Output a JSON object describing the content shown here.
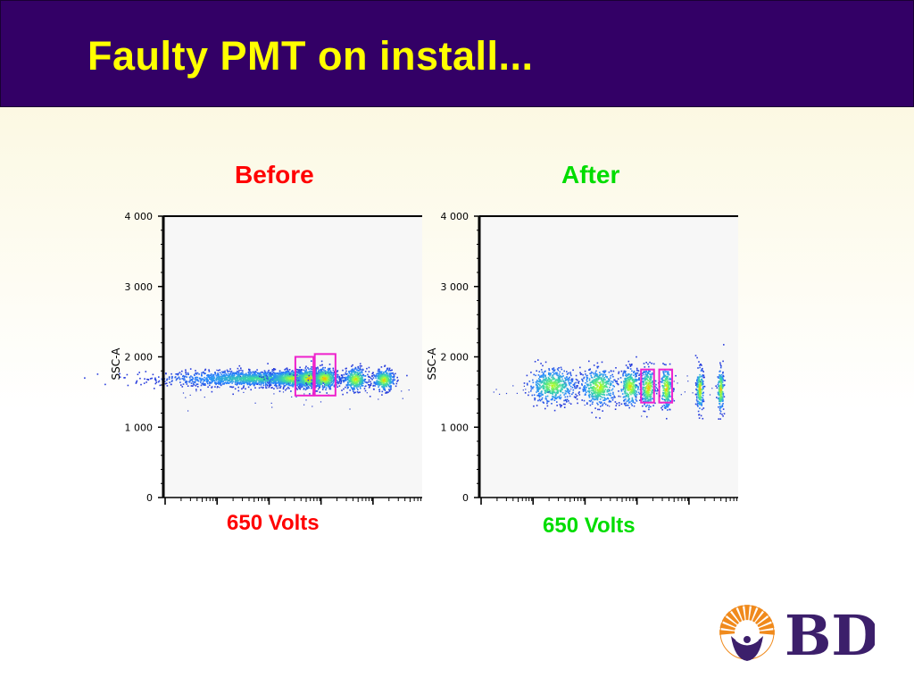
{
  "slide": {
    "title": "Faulty PMT on install...",
    "brand": "BD",
    "colors": {
      "title_bar": "#330066",
      "title_text": "#ffff00",
      "before": "#ff0000",
      "after": "#00dd00",
      "gate": "#ee22cc",
      "brand_purple": "#3c1f6b",
      "brand_orange": "#f08a1c"
    }
  },
  "chart_data": [
    {
      "type": "scatter",
      "title": "Before",
      "title_color": "#ff0000",
      "xlabel": "650 Volts",
      "xlabel_color": "#ff0000",
      "ylabel": "SSC-A",
      "ylim": [
        0,
        4000
      ],
      "yticks": [
        0,
        1000,
        2000,
        3000,
        4000
      ],
      "x_scale": "log (unlabeled)",
      "xlim": [
        0,
        100
      ],
      "populations": [
        {
          "x_center": 37,
          "x_spread": 18,
          "y_center": 1700,
          "y_spread": 55,
          "density": 0.6
        },
        {
          "x_center": 50,
          "x_spread": 5,
          "y_center": 1700,
          "y_spread": 60,
          "density": 0.85
        },
        {
          "x_center": 56,
          "x_spread": 2.5,
          "y_center": 1700,
          "y_spread": 70,
          "density": 0.95
        },
        {
          "x_center": 62,
          "x_spread": 2.5,
          "y_center": 1700,
          "y_spread": 75,
          "density": 0.95
        },
        {
          "x_center": 74,
          "x_spread": 2.2,
          "y_center": 1690,
          "y_spread": 80,
          "density": 0.9
        },
        {
          "x_center": 85,
          "x_spread": 2.0,
          "y_center": 1680,
          "y_spread": 75,
          "density": 0.9
        }
      ],
      "gates": [
        {
          "x0": 51,
          "x1": 58,
          "y0": 1450,
          "y1": 2000
        },
        {
          "x0": 58.5,
          "x1": 66.5,
          "y0": 1450,
          "y1": 2040
        }
      ]
    },
    {
      "type": "scatter",
      "title": "After",
      "title_color": "#00dd00",
      "xlabel": "650 Volts",
      "xlabel_color": "#00dd00",
      "ylabel": "SSC-A",
      "ylim": [
        0,
        4000
      ],
      "yticks": [
        0,
        1000,
        2000,
        3000,
        4000
      ],
      "x_scale": "log (unlabeled)",
      "xlim": [
        0,
        100
      ],
      "populations": [
        {
          "x_center": 28,
          "x_spread": 4.5,
          "y_center": 1600,
          "y_spread": 120,
          "density": 0.8
        },
        {
          "x_center": 46,
          "x_spread": 3.5,
          "y_center": 1580,
          "y_spread": 130,
          "density": 0.85
        },
        {
          "x_center": 58,
          "x_spread": 2.0,
          "y_center": 1580,
          "y_spread": 130,
          "density": 0.9
        },
        {
          "x_center": 65,
          "x_spread": 1.5,
          "y_center": 1570,
          "y_spread": 140,
          "density": 0.95
        },
        {
          "x_center": 72,
          "x_spread": 1.1,
          "y_center": 1560,
          "y_spread": 150,
          "density": 0.95
        },
        {
          "x_center": 85,
          "x_spread": 0.7,
          "y_center": 1550,
          "y_spread": 150,
          "density": 0.95
        },
        {
          "x_center": 93,
          "x_spread": 0.6,
          "y_center": 1540,
          "y_spread": 150,
          "density": 0.95
        }
      ],
      "gates": [
        {
          "x0": 62.5,
          "x1": 67.5,
          "y0": 1350,
          "y1": 1820
        },
        {
          "x0": 69.5,
          "x1": 74.5,
          "y0": 1350,
          "y1": 1820
        }
      ]
    }
  ]
}
